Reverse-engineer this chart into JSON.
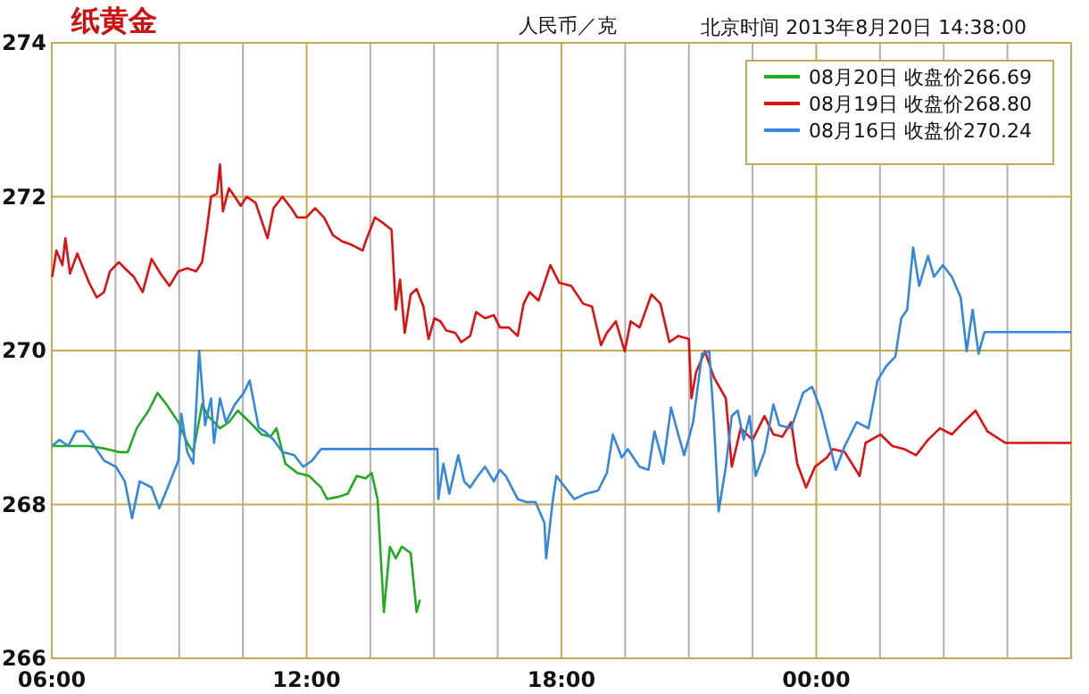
{
  "chart_data": {
    "type": "line",
    "title": "纸黄金",
    "subtitle": "人民币／克",
    "annotations": [
      "北京时间 2013年8月20日 14:38:00"
    ],
    "xlim": [
      6,
      30
    ],
    "ylim": [
      266,
      274
    ],
    "yticks": [
      266,
      268,
      270,
      272,
      274
    ],
    "xticks": [
      {
        "value": 6,
        "label": "06:00"
      },
      {
        "value": 7.5,
        "label": null
      },
      {
        "value": 9,
        "label": null
      },
      {
        "value": 10.5,
        "label": null
      },
      {
        "value": 12,
        "label": "12:00"
      },
      {
        "value": 13.5,
        "label": null
      },
      {
        "value": 15,
        "label": null
      },
      {
        "value": 16.5,
        "label": null
      },
      {
        "value": 18,
        "label": "18:00"
      },
      {
        "value": 19.5,
        "label": null
      },
      {
        "value": 21,
        "label": null
      },
      {
        "value": 22.5,
        "label": null
      },
      {
        "value": 24,
        "label": "00:00"
      },
      {
        "value": 25.5,
        "label": null
      },
      {
        "value": 27,
        "label": null
      },
      {
        "value": 28.5,
        "label": null
      }
    ],
    "grid": true,
    "legend": "top right",
    "series": [
      {
        "name": "08月20日 收盘价266.69",
        "color": "#22aa22",
        "x": [
          6.01,
          6.46,
          6.88,
          7.3,
          7.58,
          7.79,
          8.0,
          8.28,
          8.49,
          8.7,
          8.98,
          9.19,
          9.33,
          9.54,
          9.68,
          9.96,
          10.17,
          10.38,
          10.66,
          10.94,
          11.15,
          11.29,
          11.5,
          11.78,
          12.06,
          12.34,
          12.48,
          12.76,
          12.97,
          13.18,
          13.39,
          13.53,
          13.67,
          13.82,
          13.96,
          14.1,
          14.24,
          14.45,
          14.59,
          14.67
        ],
        "values": [
          268.76,
          268.76,
          268.76,
          268.72,
          268.68,
          268.68,
          268.99,
          269.22,
          269.45,
          269.3,
          269.07,
          268.8,
          268.68,
          269.3,
          269.15,
          268.99,
          269.07,
          269.22,
          269.07,
          268.91,
          268.88,
          268.99,
          268.53,
          268.41,
          268.37,
          268.22,
          268.07,
          268.1,
          268.14,
          268.37,
          268.34,
          268.41,
          268.07,
          266.6,
          267.45,
          267.3,
          267.45,
          267.37,
          266.6,
          266.76
        ]
      },
      {
        "name": "08月19日 收盘价268.80",
        "color": "#dd1111",
        "x": [
          6.01,
          6.11,
          6.25,
          6.32,
          6.43,
          6.6,
          6.74,
          6.88,
          7.06,
          7.23,
          7.37,
          7.58,
          7.72,
          7.93,
          8.14,
          8.35,
          8.56,
          8.77,
          8.98,
          9.19,
          9.4,
          9.54,
          9.66,
          9.75,
          9.89,
          9.96,
          10.03,
          10.17,
          10.31,
          10.45,
          10.59,
          10.8,
          11.08,
          11.22,
          11.43,
          11.64,
          11.78,
          11.99,
          12.2,
          12.41,
          12.62,
          12.83,
          13.04,
          13.32,
          13.39,
          13.61,
          13.82,
          14.0,
          14.1,
          14.2,
          14.31,
          14.45,
          14.59,
          14.75,
          14.87,
          15.01,
          15.15,
          15.29,
          15.5,
          15.64,
          15.85,
          15.99,
          16.2,
          16.41,
          16.55,
          16.76,
          16.97,
          17.11,
          17.25,
          17.46,
          17.74,
          17.95,
          18.23,
          18.51,
          18.72,
          18.93,
          19.07,
          19.28,
          19.49,
          19.63,
          19.84,
          20.12,
          20.33,
          20.54,
          20.75,
          21.0,
          21.06,
          21.17,
          21.38,
          21.59,
          21.87,
          22.01,
          22.22,
          22.5,
          22.78,
          22.99,
          23.2,
          23.41,
          23.55,
          23.76,
          23.97,
          24.25,
          24.39,
          24.67,
          25.02,
          25.16,
          25.51,
          25.79,
          26.07,
          26.35,
          26.63,
          26.91,
          27.19,
          27.47,
          27.75,
          28.03,
          28.45,
          28.87,
          30.0
        ],
        "values": [
          270.96,
          271.3,
          271.11,
          271.46,
          271.0,
          271.26,
          271.07,
          270.88,
          270.69,
          270.76,
          271.03,
          271.15,
          271.07,
          270.96,
          270.76,
          271.19,
          271.0,
          270.84,
          271.03,
          271.07,
          271.03,
          271.15,
          271.61,
          272.0,
          272.04,
          272.42,
          271.81,
          272.11,
          272.0,
          271.88,
          272.0,
          271.92,
          271.46,
          271.85,
          272.0,
          271.85,
          271.73,
          271.73,
          271.85,
          271.73,
          271.5,
          271.42,
          271.38,
          271.3,
          271.42,
          271.73,
          271.65,
          271.57,
          270.53,
          270.92,
          270.23,
          270.73,
          270.8,
          270.57,
          270.15,
          270.42,
          270.38,
          270.26,
          270.23,
          270.11,
          270.19,
          270.5,
          270.42,
          270.46,
          270.3,
          270.3,
          270.19,
          270.61,
          270.76,
          270.65,
          271.11,
          270.88,
          270.84,
          270.61,
          270.57,
          270.07,
          270.23,
          270.38,
          269.99,
          270.38,
          270.3,
          270.73,
          270.61,
          270.11,
          270.19,
          270.15,
          269.38,
          269.72,
          269.99,
          269.65,
          269.38,
          268.49,
          268.99,
          268.84,
          269.15,
          268.91,
          268.88,
          269.07,
          268.53,
          268.22,
          268.49,
          268.61,
          268.72,
          268.68,
          268.37,
          268.8,
          268.91,
          268.76,
          268.72,
          268.64,
          268.84,
          268.99,
          268.91,
          269.07,
          269.22,
          268.95,
          268.8,
          268.8,
          268.8
        ]
      },
      {
        "name": "08月16日 收盘价270.24",
        "color": "#3388dd",
        "x": [
          6.01,
          6.18,
          6.39,
          6.57,
          6.74,
          6.95,
          7.23,
          7.51,
          7.72,
          7.89,
          8.07,
          8.35,
          8.53,
          8.7,
          8.98,
          9.05,
          9.19,
          9.33,
          9.47,
          9.61,
          9.75,
          9.82,
          9.96,
          10.1,
          10.31,
          10.52,
          10.66,
          10.87,
          11.01,
          11.22,
          11.43,
          11.71,
          11.92,
          12.13,
          12.34,
          15.08,
          15.1,
          15.22,
          15.36,
          15.57,
          15.71,
          15.85,
          15.99,
          16.2,
          16.41,
          16.55,
          16.69,
          16.97,
          17.18,
          17.39,
          17.6,
          17.64,
          17.8,
          17.88,
          18.09,
          18.3,
          18.58,
          18.86,
          19.07,
          19.21,
          19.42,
          19.56,
          19.84,
          20.05,
          20.19,
          20.4,
          20.58,
          20.75,
          20.89,
          21.1,
          21.31,
          21.48,
          21.59,
          21.7,
          21.87,
          22.01,
          22.15,
          22.29,
          22.43,
          22.57,
          22.78,
          22.99,
          23.13,
          23.41,
          23.69,
          23.9,
          24.11,
          24.32,
          24.46,
          24.67,
          24.95,
          25.23,
          25.44,
          25.65,
          25.86,
          26.0,
          26.14,
          26.28,
          26.42,
          26.63,
          26.77,
          26.98,
          27.19,
          27.4,
          27.54,
          27.68,
          27.82,
          27.96,
          30.0
        ],
        "values": [
          268.76,
          268.84,
          268.76,
          268.95,
          268.95,
          268.8,
          268.57,
          268.49,
          268.3,
          267.82,
          268.3,
          268.22,
          267.95,
          268.18,
          268.57,
          269.18,
          268.68,
          268.53,
          270.0,
          269.03,
          269.38,
          268.8,
          269.38,
          269.07,
          269.3,
          269.45,
          269.61,
          269.0,
          268.95,
          268.84,
          268.68,
          268.64,
          268.49,
          268.57,
          268.72,
          268.72,
          268.07,
          268.53,
          268.14,
          268.64,
          268.3,
          268.22,
          268.34,
          268.49,
          268.3,
          268.45,
          268.37,
          268.07,
          268.03,
          268.03,
          267.76,
          267.3,
          268.07,
          268.37,
          268.22,
          268.07,
          268.14,
          268.18,
          268.41,
          268.91,
          268.61,
          268.72,
          268.49,
          268.45,
          268.95,
          268.53,
          269.26,
          268.91,
          268.64,
          269.07,
          269.96,
          269.99,
          269.07,
          267.91,
          268.49,
          269.15,
          269.22,
          268.84,
          269.15,
          268.37,
          268.68,
          269.3,
          269.03,
          268.99,
          269.45,
          269.53,
          269.22,
          268.76,
          268.45,
          268.76,
          269.07,
          268.99,
          269.61,
          269.8,
          269.92,
          270.42,
          270.53,
          271.34,
          270.84,
          271.23,
          270.96,
          271.11,
          270.96,
          270.69,
          269.99,
          270.53,
          269.96,
          270.24,
          270.24
        ]
      }
    ]
  }
}
